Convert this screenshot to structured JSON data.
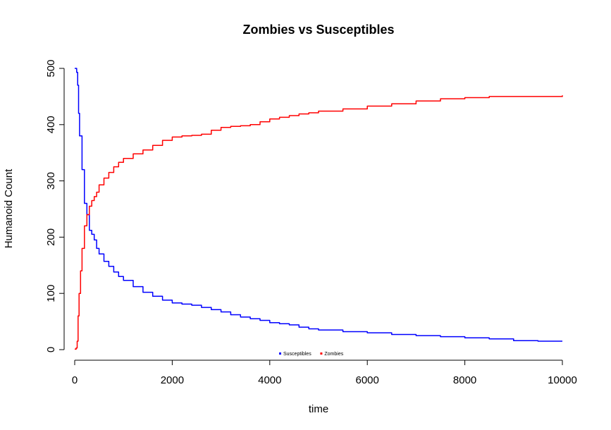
{
  "chart_data": {
    "type": "line",
    "title": "Zombies vs Susceptibles",
    "xlabel": "time",
    "ylabel": "Humanoid Count",
    "xlim": [
      0,
      10000
    ],
    "ylim": [
      0,
      500
    ],
    "xticks": [
      0,
      2000,
      4000,
      6000,
      8000,
      10000
    ],
    "yticks": [
      0,
      100,
      200,
      300,
      400,
      500
    ],
    "grid": false,
    "legend_position": "bottom-center",
    "series": [
      {
        "name": "Susceptibles",
        "color": "#0000ff",
        "x": [
          0,
          40,
          60,
          80,
          100,
          150,
          200,
          250,
          300,
          350,
          400,
          450,
          500,
          600,
          700,
          800,
          900,
          1000,
          1200,
          1400,
          1600,
          1800,
          2000,
          2200,
          2400,
          2600,
          2800,
          3000,
          3200,
          3400,
          3600,
          3800,
          4000,
          4200,
          4400,
          4600,
          4800,
          5000,
          5500,
          6000,
          6500,
          7000,
          7500,
          8000,
          8500,
          9000,
          9500,
          10000
        ],
        "values": [
          500,
          493,
          470,
          420,
          380,
          320,
          260,
          240,
          212,
          205,
          195,
          180,
          170,
          157,
          148,
          138,
          130,
          123,
          112,
          102,
          95,
          88,
          83,
          81,
          79,
          75,
          71,
          67,
          62,
          58,
          55,
          52,
          48,
          46,
          44,
          40,
          37,
          35,
          32,
          30,
          27,
          25,
          23,
          21,
          19,
          16,
          15,
          15
        ]
      },
      {
        "name": "Zombies",
        "color": "#ff0000",
        "x": [
          0,
          30,
          50,
          70,
          90,
          120,
          150,
          200,
          250,
          300,
          350,
          400,
          450,
          500,
          600,
          700,
          800,
          900,
          1000,
          1200,
          1400,
          1600,
          1800,
          2000,
          2200,
          2400,
          2600,
          2800,
          3000,
          3200,
          3400,
          3600,
          3800,
          4000,
          4200,
          4400,
          4600,
          4800,
          5000,
          5500,
          6000,
          6500,
          7000,
          7500,
          8000,
          8500,
          9000,
          9500,
          10000
        ],
        "values": [
          1,
          3,
          15,
          60,
          100,
          140,
          180,
          220,
          240,
          255,
          265,
          272,
          280,
          293,
          305,
          315,
          325,
          333,
          340,
          348,
          355,
          363,
          372,
          378,
          380,
          381,
          383,
          390,
          395,
          397,
          398,
          400,
          405,
          410,
          413,
          416,
          419,
          421,
          424,
          428,
          433,
          437,
          442,
          446,
          448,
          450,
          450,
          450,
          452
        ]
      }
    ]
  }
}
